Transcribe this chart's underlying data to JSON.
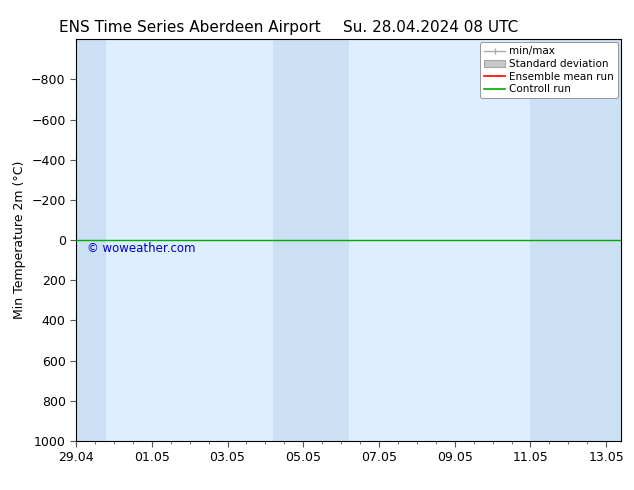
{
  "title_left": "ENS Time Series Aberdeen Airport",
  "title_right": "Su. 28.04.2024 08 UTC",
  "ylabel": "Min Temperature 2m (°C)",
  "ylim_top": -1000,
  "ylim_bottom": 1000,
  "yticks": [
    -800,
    -600,
    -400,
    -200,
    0,
    200,
    400,
    600,
    800,
    1000
  ],
  "xtick_labels": [
    "29.04",
    "01.05",
    "03.05",
    "05.05",
    "07.05",
    "09.05",
    "11.05",
    "13.05"
  ],
  "xtick_positions": [
    0,
    2,
    4,
    6,
    8,
    10,
    12,
    14
  ],
  "xlim": [
    0,
    14.4
  ],
  "background_color": "#ffffff",
  "plot_bg_color": "#ddeeff",
  "shaded_bands": [
    {
      "x_start": -0.2,
      "x_end": 0.8,
      "color": "#cce0f5"
    },
    {
      "x_start": 5.2,
      "x_end": 7.2,
      "color": "#cce0f5"
    },
    {
      "x_start": 12.0,
      "x_end": 14.6,
      "color": "#cce0f5"
    }
  ],
  "control_run_y": 0,
  "control_run_color": "#00aa00",
  "ensemble_mean_color": "#ff0000",
  "stddev_color": "#c8c8c8",
  "minmax_color": "#aaaaaa",
  "watermark_text": "© woweather.com",
  "watermark_color": "#0000cc",
  "legend_entries": [
    "min/max",
    "Standard deviation",
    "Ensemble mean run",
    "Controll run"
  ],
  "legend_colors": [
    "#aaaaaa",
    "#c8c8c8",
    "#ff0000",
    "#00aa00"
  ],
  "title_fontsize": 11,
  "tick_fontsize": 9,
  "ylabel_fontsize": 9
}
